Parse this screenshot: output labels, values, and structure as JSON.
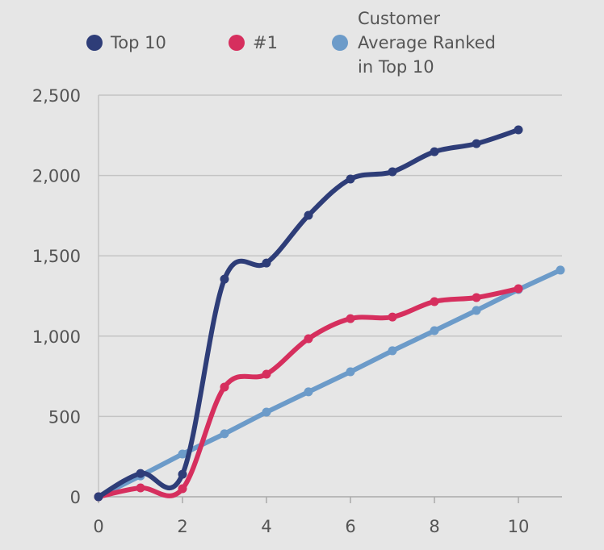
{
  "chart_data": {
    "type": "line",
    "title": "",
    "xlabel": "",
    "ylabel": "",
    "xlim": [
      0,
      11
    ],
    "ylim": [
      0,
      2500
    ],
    "x_ticks": [
      0,
      2,
      4,
      6,
      8,
      10
    ],
    "x_tick_labels": [
      "0",
      "2",
      "4",
      "6",
      "8",
      "10"
    ],
    "y_ticks": [
      0,
      500,
      1000,
      1500,
      2000,
      2500
    ],
    "y_tick_labels": [
      "0",
      "500",
      "1,000",
      "1,500",
      "2,000",
      "2,500"
    ],
    "grid": "horizontal",
    "legend_position": "top",
    "series": [
      {
        "name": "Top 10",
        "color": "#2e3d78",
        "smooth": true,
        "x": [
          0,
          1,
          2,
          3,
          4,
          5,
          6,
          7,
          8,
          9,
          10
        ],
        "values": [
          0,
          145,
          140,
          1355,
          1455,
          1752,
          1978,
          2023,
          2148,
          2198,
          2284
        ]
      },
      {
        "name": "#1",
        "color": "#d62f5e",
        "smooth": true,
        "x": [
          0,
          1,
          2,
          3,
          4,
          5,
          6,
          7,
          8,
          9,
          10
        ],
        "values": [
          0,
          55,
          50,
          683,
          763,
          984,
          1109,
          1119,
          1215,
          1240,
          1295
        ]
      },
      {
        "name": "Customer Average Ranked in Top 10",
        "legend_lines": [
          "Customer",
          "Average Ranked",
          "in Top 10"
        ],
        "color": "#6c9bc9",
        "smooth": false,
        "x": [
          0,
          1,
          2,
          3,
          4,
          5,
          6,
          7,
          8,
          9,
          10,
          11
        ],
        "values": [
          0,
          130,
          266,
          392,
          527,
          653,
          778,
          909,
          1034,
          1160,
          1290,
          1411
        ]
      }
    ]
  }
}
